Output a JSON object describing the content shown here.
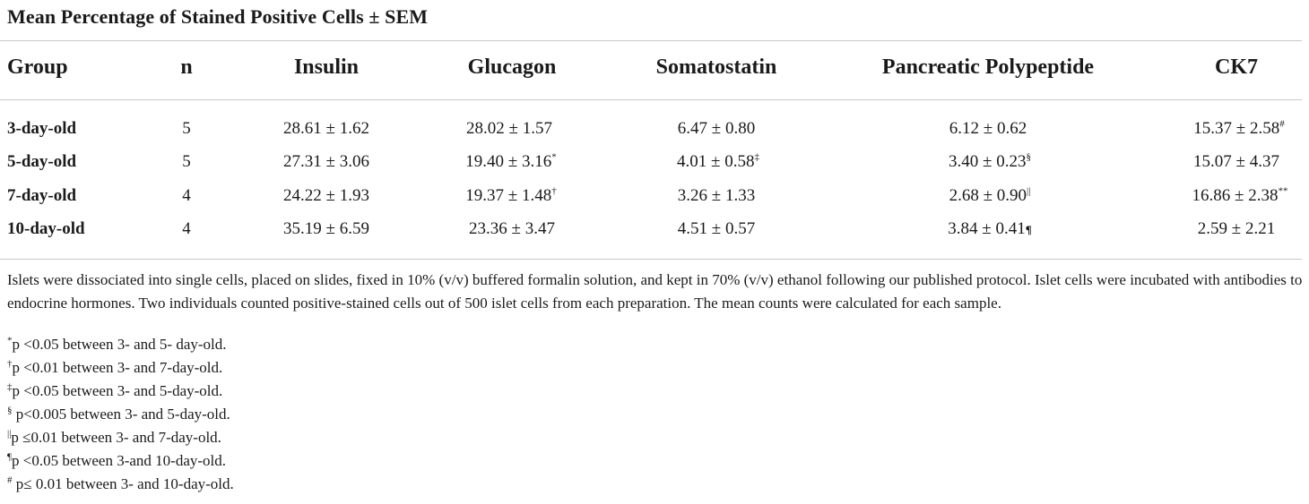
{
  "title": "Mean Percentage of Stained Positive Cells ± SEM",
  "headers": [
    "Group",
    "n",
    "Insulin",
    "Glucagon",
    "Somatostatin",
    "Pancreatic Polypeptide",
    "CK7"
  ],
  "rows": [
    {
      "group": "3-day-old",
      "n": "5",
      "insulin": "28.61 ± 1.62",
      "insulin_mark": "",
      "glucagon": "28.02 ± 1.57",
      "glucagon_mark": "",
      "somatostatin": "6.47 ± 0.80",
      "somatostatin_mark": "",
      "pp": "6.12 ± 0.62",
      "pp_mark": "",
      "ck7": "15.37 ± 2.58",
      "ck7_mark": "#"
    },
    {
      "group": "5-day-old",
      "n": "5",
      "insulin": "27.31 ± 3.06",
      "insulin_mark": "",
      "glucagon": "19.40 ± 3.16",
      "glucagon_mark": "*",
      "somatostatin": "4.01 ± 0.58",
      "somatostatin_mark": "‡",
      "pp": "3.40 ± 0.23",
      "pp_mark": "§",
      "ck7": "15.07 ± 4.37",
      "ck7_mark": ""
    },
    {
      "group": "7-day-old",
      "n": "4",
      "insulin": "24.22 ± 1.93",
      "insulin_mark": "",
      "glucagon": "19.37 ± 1.48",
      "glucagon_mark": "†",
      "somatostatin": "3.26 ± 1.33",
      "somatostatin_mark": "",
      "pp": "2.68 ± 0.90",
      "pp_mark": "||",
      "ck7": "16.86 ± 2.38",
      "ck7_mark": "**"
    },
    {
      "group": "10-day-old",
      "n": "4",
      "insulin": "35.19 ± 6.59",
      "insulin_mark": "",
      "glucagon": "23.36 ± 3.47",
      "glucagon_mark": "",
      "somatostatin": "4.51 ± 0.57",
      "somatostatin_mark": "",
      "pp": "3.84 ± 0.41",
      "pp_mark": "¶",
      "ck7": "2.59 ± 2.21",
      "ck7_mark": ""
    }
  ],
  "note": "Islets were dissociated into single cells, placed on slides, fixed in 10% (v/v) buffered formalin solution, and kept in 70% (v/v) ethanol following our published protocol. Islet cells were incubated with antibodies to endocrine hormones. Two individuals counted positive-stained cells out of 500 islet cells from each preparation. The mean counts were calculated for each sample.",
  "footnotes": [
    {
      "mark": "*",
      "text": "p <0.05 between 3- and 5- day-old."
    },
    {
      "mark": "†",
      "text": "p <0.01 between 3- and 7-day-old."
    },
    {
      "mark": "‡",
      "text": "p <0.05 between 3- and 5-day-old."
    },
    {
      "mark": "§",
      "text": " p<0.005 between 3- and 5-day-old."
    },
    {
      "mark": "||",
      "text": "p ≤0.01 between 3- and 7-day-old."
    },
    {
      "mark": "¶",
      "text": "p <0.05 between 3-and 10-day-old."
    },
    {
      "mark": "#",
      "text": " p≤ 0.01 between 3- and 10-day-old."
    }
  ]
}
